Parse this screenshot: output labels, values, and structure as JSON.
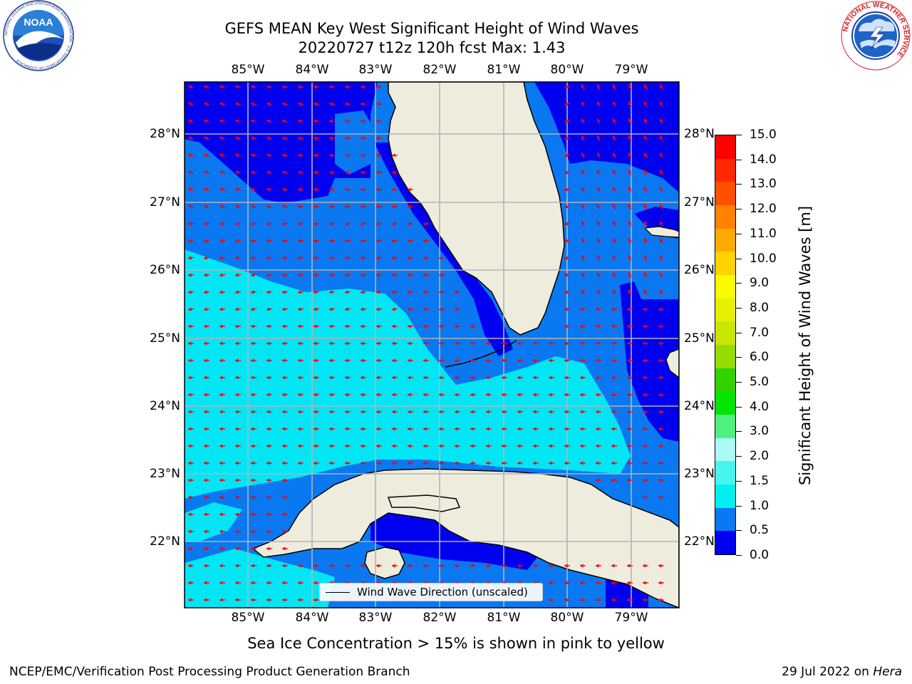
{
  "title": {
    "line1": "GEFS MEAN Key West Significant Height of Wind Waves",
    "line2": "20220727 t12z 120h fcst   Max: 1.43"
  },
  "logos": {
    "noaa_text": "NOAA",
    "noaa_ring": "NATIONAL OCEANIC AND ATMOSPHERIC ADMINISTRATION · U.S. DEPARTMENT OF COMMERCE",
    "nws_ring": "NATIONAL WEATHER SERVICE"
  },
  "map": {
    "lon_labels": [
      "85°W",
      "84°W",
      "83°W",
      "82°W",
      "81°W",
      "80°W",
      "79°W"
    ],
    "lat_labels": [
      "28°N",
      "27°N",
      "26°N",
      "25°N",
      "24°N",
      "23°N",
      "22°N"
    ],
    "legend_label": "Wind Wave Direction (unscaled)",
    "colors": {
      "land": "#eeecdc",
      "ocean_0_0.5": "#0000f0",
      "ocean_0.5_1.0": "#0a78f0",
      "ocean_1.0_1.5": "#00e6f5",
      "arrow": "#ff0000",
      "grid": "#b4b4b4"
    }
  },
  "colorbar": {
    "title": "Significant Height of Wind Waves [m]",
    "tick_labels": [
      "0.0",
      "0.5",
      "1.0",
      "1.5",
      "2.0",
      "3.0",
      "4.0",
      "5.0",
      "6.0",
      "7.0",
      "8.0",
      "9.0",
      "10.0",
      "11.0",
      "12.0",
      "13.0",
      "14.0",
      "15.0"
    ],
    "colors": [
      "#0000f0",
      "#0a78f0",
      "#00f0f0",
      "#46f5f0",
      "#aafaf5",
      "#50f080",
      "#00e600",
      "#32d200",
      "#96dc00",
      "#c8e600",
      "#e6f000",
      "#fafa00",
      "#ffd200",
      "#ffaa00",
      "#ff8200",
      "#ff5000",
      "#ff2800",
      "#ff0000"
    ]
  },
  "notes": {
    "ice": "Sea Ice Concentration > 15% is shown in pink to yellow",
    "footer_left": "NCEP/EMC/Verification Post Processing Product Generation Branch",
    "footer_date": "29 Jul 2022 on ",
    "footer_host": "Hera"
  }
}
